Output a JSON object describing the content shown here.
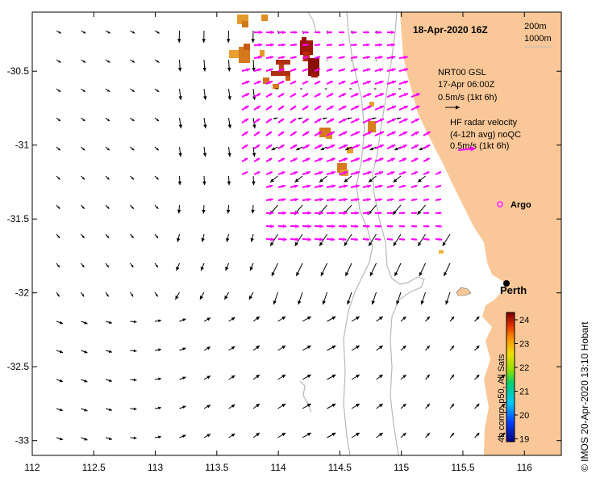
{
  "map": {
    "title": "18-Apr-2020 16Z",
    "lon_range": [
      112,
      116.3
    ],
    "lat_range": [
      -33.1,
      -30.1
    ],
    "x_ticks": [
      {
        "value": 112,
        "label": "112"
      },
      {
        "value": 112.5,
        "label": "112.5"
      },
      {
        "value": 113,
        "label": "113"
      },
      {
        "value": 113.5,
        "label": "113.5"
      },
      {
        "value": 114,
        "label": "114"
      },
      {
        "value": 114.5,
        "label": "114.5"
      },
      {
        "value": 115,
        "label": "115"
      },
      {
        "value": 115.5,
        "label": "115.5"
      },
      {
        "value": 116,
        "label": "116"
      }
    ],
    "y_ticks": [
      {
        "value": -30.5,
        "label": "-30.5"
      },
      {
        "value": -31,
        "label": "-31"
      },
      {
        "value": -31.5,
        "label": "-31.5"
      },
      {
        "value": -32,
        "label": "-32"
      },
      {
        "value": -32.5,
        "label": "-32.5"
      },
      {
        "value": -33,
        "label": "-33"
      }
    ]
  },
  "depth_legend": {
    "label_200": "200m",
    "label_1000": "1000m"
  },
  "legend": {
    "nrt_line1": "NRT00 GSL",
    "nrt_line2": "17-Apr 06:00Z",
    "nrt_line3": "0.5m/s (1kt 6h)",
    "hf_line1": "HF radar velocity",
    "hf_line2": "(4-12h avg) noQC",
    "hf_line3": "0.5m/s (1kt 6h)"
  },
  "places": {
    "perth": "Perth",
    "argo": "Argo"
  },
  "colorbar": {
    "ticks": [
      "24",
      "23",
      "22",
      "21",
      "20",
      "19"
    ],
    "caption": "4h comp, p50, All Sats"
  },
  "credit": "© IMOS 20-Apr-2020 13:10 Hobart",
  "colors": {
    "land": "#fac898",
    "hf_arrow": "#ff00ff",
    "isobath": "#b8b8b8",
    "argo": "#ff44ff"
  }
}
